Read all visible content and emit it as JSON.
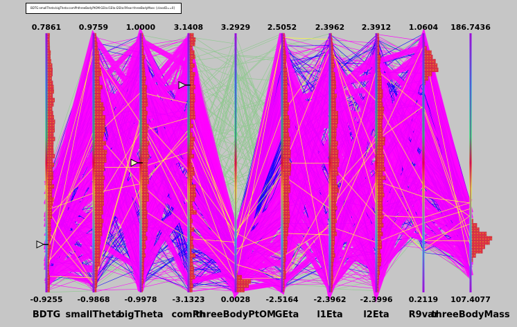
{
  "title": "BDTG:smallTheta:bigTheta:comPhthreeBodyPtOM:GEta:l1Eta:l2Eta:R9var:threeBodyMass {classID==0}",
  "colors": {
    "background": "#c6c6c6",
    "main_lines": "#ff00ff",
    "secondary_lines": "#0000ff",
    "tertiary_lines": "#8ec98e",
    "highlight_lines": "#ffff33",
    "histogram_fill": "#dd2f45",
    "histogram_hatch": "#e08f2a",
    "axis_line": "#9b1fa3"
  },
  "chart_data": {
    "type": "parallel_coordinates",
    "title": "BDTG:smallTheta:bigTheta:comPhthreeBodyPtOM:GEta:l1Eta:l2Eta:R9var:threeBodyMass {classID==0}",
    "axes": [
      {
        "name": "BDTG",
        "max": "0.7861",
        "min": "-0.9255"
      },
      {
        "name": "smallTheta",
        "max": "0.9759",
        "min": "-0.9868"
      },
      {
        "name": "bigTheta",
        "max": "1.0000",
        "min": "-0.9978"
      },
      {
        "name": "comPh",
        "max": "3.1408",
        "min": "-3.1323"
      },
      {
        "name": "threeBodyPtOM",
        "max": "3.2929",
        "min": "0.0028"
      },
      {
        "name": "GEta",
        "max": "2.5052",
        "min": "-2.5164"
      },
      {
        "name": "l1Eta",
        "max": "2.3962",
        "min": "-2.3962"
      },
      {
        "name": "l2Eta",
        "max": "2.3912",
        "min": "-2.3996"
      },
      {
        "name": "R9var",
        "max": "1.0604",
        "min": "0.2119"
      },
      {
        "name": "threeBodyMass",
        "max": "186.7436",
        "min": "107.4077"
      }
    ],
    "range_markers": [
      {
        "axis": "BDTG",
        "value": 0.7861
      },
      {
        "axis": "bigTheta",
        "value": 1.0
      },
      {
        "axis": "comPh",
        "value": 3.1408
      }
    ]
  }
}
